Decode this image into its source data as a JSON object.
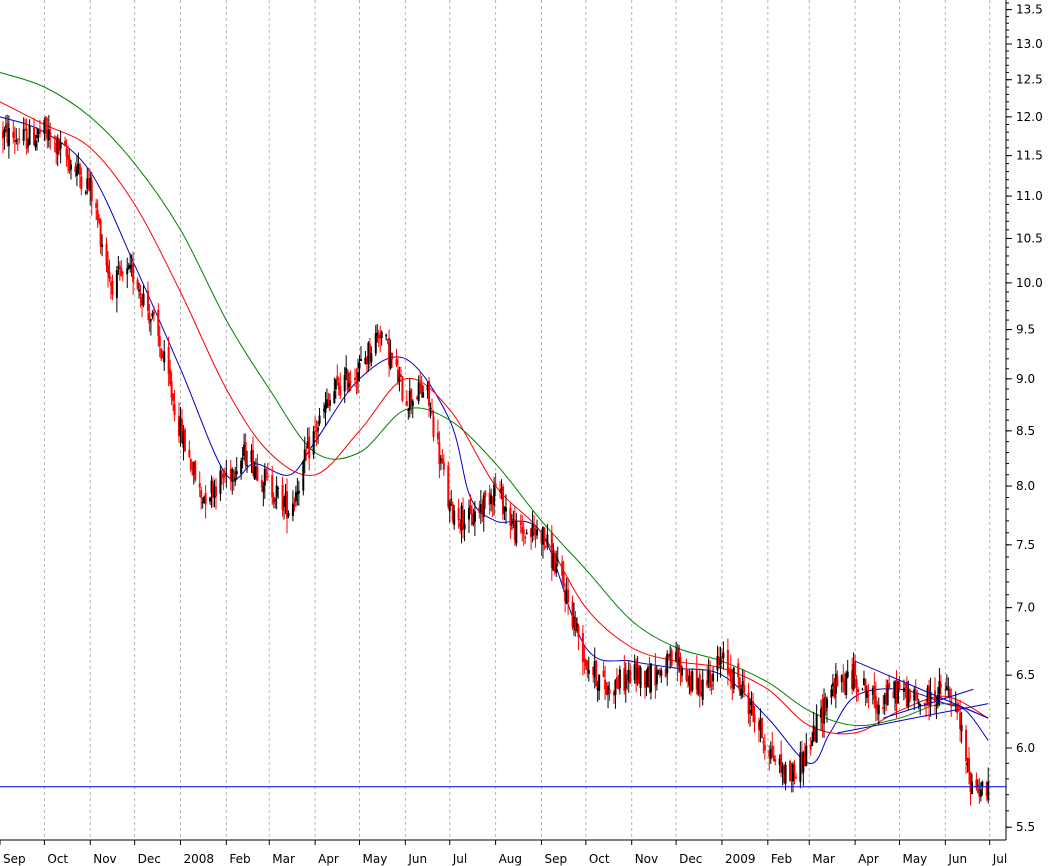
{
  "chart_data": {
    "type": "candlestick",
    "title": "",
    "xlabel": "",
    "ylabel": "",
    "grid": {
      "vertical": "dashed",
      "horizontal": "none"
    },
    "y_ticks": [
      "5.5",
      "6.0",
      "6.5",
      "7.0",
      "7.5",
      "8.0",
      "8.5",
      "9.0",
      "9.5",
      "10.0",
      "10.5",
      "11.0",
      "11.5",
      "12.0",
      "12.5",
      "13.0",
      "13.5"
    ],
    "ylim": [
      5.3,
      13.6
    ],
    "x_ticks": [
      "Sep",
      "Oct",
      "Nov",
      "Dec",
      "2008",
      "Feb",
      "Mar",
      "Apr",
      "May",
      "Jun",
      "Jul",
      "Aug",
      "Sep",
      "Oct",
      "Nov",
      "Dec",
      "2009",
      "Feb",
      "Mar",
      "Apr",
      "May",
      "Jun",
      "Jul"
    ],
    "xlim": [
      "2007-09-01",
      "2009-07-12"
    ],
    "up_color": "#000000",
    "down_color": "#ff0000",
    "price_series": {
      "dates": [
        "2007-09-01",
        "2007-09-15",
        "2007-10-01",
        "2007-10-15",
        "2007-11-01",
        "2007-11-15",
        "2007-12-01",
        "2007-12-15",
        "2008-01-01",
        "2008-01-15",
        "2008-02-01",
        "2008-02-15",
        "2008-03-01",
        "2008-03-15",
        "2008-04-01",
        "2008-04-15",
        "2008-05-01",
        "2008-05-15",
        "2008-06-01",
        "2008-06-15",
        "2008-07-01",
        "2008-07-15",
        "2008-08-01",
        "2008-08-15",
        "2008-09-01",
        "2008-09-15",
        "2008-10-01",
        "2008-10-15",
        "2008-11-01",
        "2008-11-15",
        "2008-12-01",
        "2008-12-15",
        "2009-01-01",
        "2009-01-15",
        "2009-02-01",
        "2009-02-15",
        "2009-03-01",
        "2009-03-15",
        "2009-04-01",
        "2009-04-15",
        "2009-05-01",
        "2009-05-15",
        "2009-06-01",
        "2009-06-10",
        "2009-06-17",
        "2009-06-24",
        "2009-06-30"
      ],
      "close": [
        11.8,
        11.7,
        11.8,
        11.5,
        11.1,
        10.0,
        10.1,
        9.5,
        8.5,
        7.9,
        8.1,
        8.3,
        8.0,
        7.8,
        8.5,
        8.9,
        9.1,
        9.5,
        8.8,
        8.9,
        7.8,
        7.7,
        8.0,
        7.6,
        7.6,
        7.2,
        6.6,
        6.4,
        6.5,
        6.5,
        6.6,
        6.4,
        6.6,
        6.4,
        6.0,
        5.8,
        6.0,
        6.4,
        6.5,
        6.3,
        6.4,
        6.3,
        6.4,
        6.2,
        5.8,
        5.75,
        5.73
      ]
    },
    "series": [
      {
        "color": "#0000cc",
        "x": [
          "2007-09-01",
          "2007-10-01",
          "2007-11-01",
          "2007-12-01",
          "2008-01-01",
          "2008-02-01",
          "2008-02-20",
          "2008-03-15",
          "2008-04-01",
          "2008-05-01",
          "2008-06-01",
          "2008-07-01",
          "2008-07-15",
          "2008-08-01",
          "2008-09-01",
          "2008-10-01",
          "2008-11-01",
          "2008-12-01",
          "2009-01-01",
          "2009-02-01",
          "2009-03-01",
          "2009-03-15",
          "2009-04-01",
          "2009-05-01",
          "2009-06-01",
          "2009-06-15",
          "2009-06-30"
        ],
        "values": [
          12.0,
          11.8,
          11.3,
          10.2,
          9.1,
          8.1,
          8.2,
          8.1,
          8.4,
          9.0,
          9.2,
          8.6,
          7.9,
          7.7,
          7.6,
          6.7,
          6.6,
          6.55,
          6.5,
          6.2,
          5.9,
          6.1,
          6.35,
          6.4,
          6.3,
          6.25,
          6.05
        ]
      },
      {
        "color": "#ff0000",
        "x": [
          "2007-09-01",
          "2007-10-01",
          "2007-11-01",
          "2007-12-01",
          "2008-01-01",
          "2008-02-01",
          "2008-03-01",
          "2008-04-01",
          "2008-05-01",
          "2008-06-01",
          "2008-07-01",
          "2008-08-01",
          "2008-09-01",
          "2008-10-01",
          "2008-11-01",
          "2008-12-01",
          "2009-01-01",
          "2009-02-01",
          "2009-03-01",
          "2009-04-01",
          "2009-05-01",
          "2009-06-01",
          "2009-06-30"
        ],
        "values": [
          12.2,
          11.9,
          11.6,
          10.9,
          9.9,
          8.9,
          8.3,
          8.1,
          8.5,
          9.0,
          8.7,
          8.0,
          7.6,
          7.0,
          6.7,
          6.6,
          6.55,
          6.4,
          6.15,
          6.1,
          6.25,
          6.35,
          6.2
        ]
      },
      {
        "color": "#008000",
        "x": [
          "2007-09-01",
          "2007-10-01",
          "2007-11-01",
          "2007-12-01",
          "2008-01-01",
          "2008-02-01",
          "2008-03-01",
          "2008-04-01",
          "2008-05-01",
          "2008-06-01",
          "2008-07-01",
          "2008-08-01",
          "2008-09-01",
          "2008-10-01",
          "2008-11-01",
          "2008-12-01",
          "2009-01-01",
          "2009-02-01",
          "2009-03-01",
          "2009-04-01",
          "2009-05-01",
          "2009-06-01",
          "2009-06-30"
        ],
        "values": [
          12.6,
          12.4,
          12.0,
          11.4,
          10.6,
          9.6,
          8.9,
          8.3,
          8.3,
          8.7,
          8.6,
          8.2,
          7.7,
          7.3,
          6.9,
          6.7,
          6.6,
          6.45,
          6.25,
          6.15,
          6.2,
          6.3,
          6.2
        ]
      }
    ],
    "annotations": [
      {
        "kind": "horizontal-line",
        "color": "#0000ff",
        "y": 5.75
      },
      {
        "kind": "trendline",
        "color": "#0000cc",
        "x": [
          "2009-04-01",
          "2009-06-30"
        ],
        "y": [
          6.6,
          6.2
        ]
      },
      {
        "kind": "trendline",
        "color": "#0000cc",
        "x": [
          "2009-03-20",
          "2009-06-30"
        ],
        "y": [
          6.1,
          6.3
        ]
      },
      {
        "kind": "trendline",
        "color": "#0000cc",
        "x": [
          "2009-04-20",
          "2009-06-20"
        ],
        "y": [
          6.2,
          6.4
        ]
      }
    ]
  }
}
